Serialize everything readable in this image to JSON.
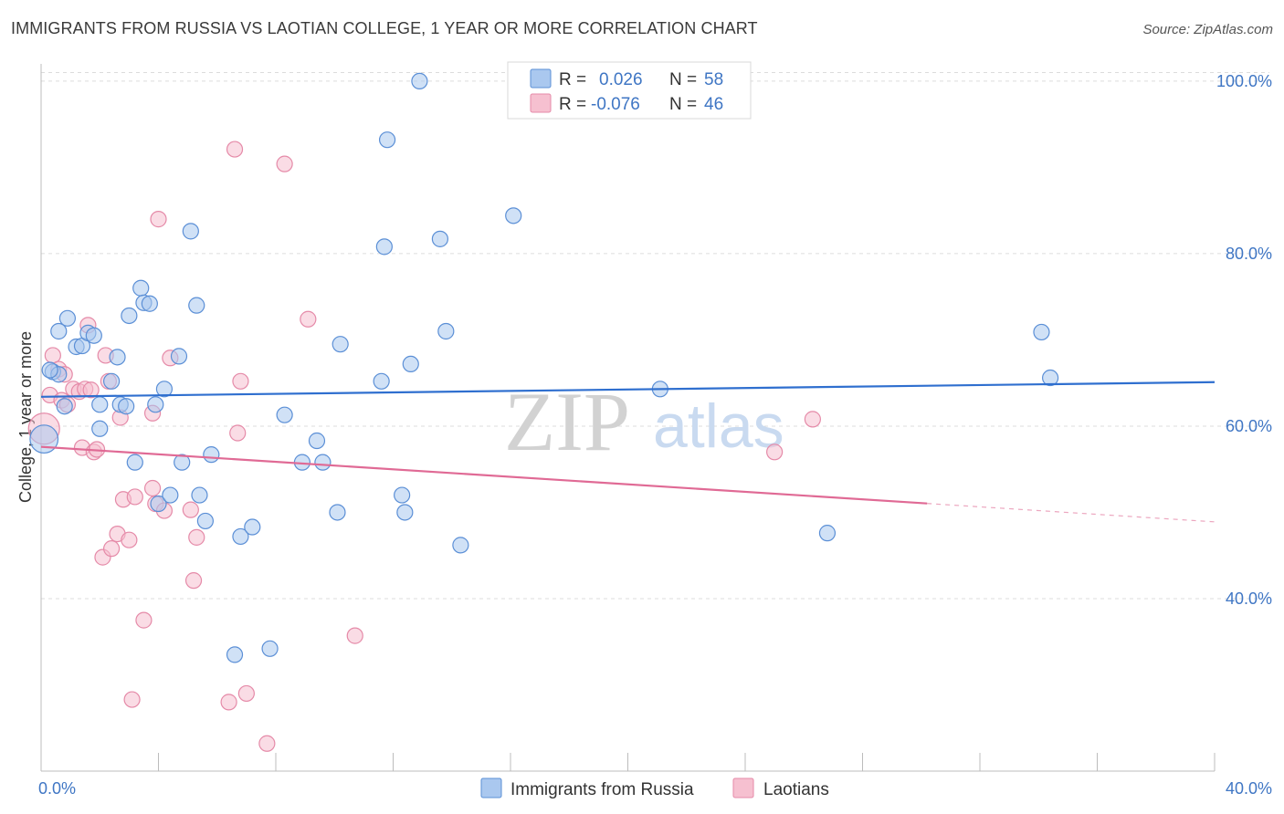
{
  "title": "IMMIGRANTS FROM RUSSIA VS LAOTIAN COLLEGE, 1 YEAR OR MORE CORRELATION CHART",
  "source": "Source: ZipAtlas.com",
  "watermark": {
    "zip": "ZIP",
    "atlas": "atlas"
  },
  "colors": {
    "blue_fill": "#aac8ef",
    "blue_stroke": "#5b8fd6",
    "blue_line": "#2f6fcf",
    "pink_fill": "#f6c0d0",
    "pink_stroke": "#e58aa8",
    "pink_line": "#e06a95",
    "tick_text": "#3f76c4",
    "grid": "#dcdcdc"
  },
  "legend_top": {
    "rows": [
      {
        "r_label": "R =",
        "r_value": "0.026",
        "n_label": "N =",
        "n_value": "58",
        "color": "blue"
      },
      {
        "r_label": "R =",
        "r_value": "-0.076",
        "n_label": "N =",
        "n_value": "46",
        "color": "pink"
      }
    ]
  },
  "legend_bottom": {
    "items": [
      {
        "label": "Immigrants from Russia",
        "color": "blue"
      },
      {
        "label": "Laotians",
        "color": "pink"
      }
    ]
  },
  "chart_data": {
    "type": "scatter",
    "xlabel": "",
    "ylabel": "College, 1 year or more",
    "xlim": [
      0,
      40
    ],
    "ylim": [
      20,
      102
    ],
    "x_tick_labels": [
      {
        "value": 0,
        "label": "0.0%"
      },
      {
        "value": 40,
        "label": "40.0%"
      }
    ],
    "y_tick_labels": [
      {
        "value": 40,
        "label": "40.0%"
      },
      {
        "value": 60,
        "label": "60.0%"
      },
      {
        "value": 80,
        "label": "80.0%"
      },
      {
        "value": 100,
        "label": "100.0%"
      }
    ],
    "y_gridlines": [
      40,
      60,
      80,
      100
    ],
    "x_minor_ticks": [
      4,
      8,
      12,
      16,
      20,
      24,
      28,
      32,
      36,
      40
    ],
    "series": [
      {
        "name": "Immigrants from Russia",
        "color": "blue",
        "trend": {
          "x": [
            0,
            40
          ],
          "y": [
            63.4,
            65.1
          ],
          "dashed_from": null
        },
        "points": [
          [
            0.1,
            58.5,
            1.8
          ],
          [
            0.4,
            66.3,
            1.0
          ],
          [
            0.6,
            66.0,
            1.0
          ],
          [
            0.8,
            62.3,
            1.0
          ],
          [
            0.6,
            71.0,
            1.0
          ],
          [
            0.9,
            72.5,
            1.0
          ],
          [
            1.2,
            69.2,
            1.0
          ],
          [
            1.4,
            69.3,
            1.0
          ],
          [
            1.6,
            70.8,
            1.0
          ],
          [
            1.8,
            70.5,
            1.0
          ],
          [
            2.0,
            62.5,
            1.0
          ],
          [
            2.0,
            59.7,
            1.0
          ],
          [
            2.4,
            65.2,
            1.0
          ],
          [
            2.6,
            68.0,
            1.0
          ],
          [
            2.7,
            62.5,
            1.0
          ],
          [
            2.9,
            62.3,
            1.0
          ],
          [
            3.0,
            72.8,
            1.0
          ],
          [
            3.2,
            55.8,
            1.0
          ],
          [
            3.4,
            76.0,
            1.0
          ],
          [
            3.5,
            74.3,
            1.0
          ],
          [
            3.7,
            74.2,
            1.0
          ],
          [
            3.9,
            62.5,
            1.0
          ],
          [
            4.2,
            64.3,
            1.0
          ],
          [
            4.0,
            51.0,
            1.0
          ],
          [
            4.4,
            52.0,
            1.0
          ],
          [
            4.7,
            68.1,
            1.0
          ],
          [
            4.8,
            55.8,
            1.0
          ],
          [
            5.1,
            82.6,
            1.0
          ],
          [
            5.3,
            74.0,
            1.0
          ],
          [
            5.4,
            52.0,
            1.0
          ],
          [
            5.6,
            49.0,
            1.0
          ],
          [
            5.8,
            56.7,
            1.0
          ],
          [
            6.6,
            33.5,
            1.0
          ],
          [
            6.8,
            47.2,
            1.0
          ],
          [
            7.2,
            48.3,
            1.0
          ],
          [
            7.8,
            34.2,
            1.0
          ],
          [
            8.3,
            61.3,
            1.0
          ],
          [
            8.9,
            55.8,
            1.0
          ],
          [
            9.4,
            58.3,
            1.0
          ],
          [
            9.6,
            55.8,
            1.0
          ],
          [
            10.1,
            50.0,
            1.0
          ],
          [
            10.2,
            69.5,
            1.0
          ],
          [
            11.6,
            65.2,
            1.0
          ],
          [
            11.7,
            80.8,
            1.0
          ],
          [
            11.8,
            93.2,
            1.0
          ],
          [
            12.3,
            52.0,
            1.0
          ],
          [
            12.4,
            50.0,
            1.0
          ],
          [
            12.6,
            67.2,
            1.0
          ],
          [
            12.9,
            100.0,
            1.0
          ],
          [
            13.6,
            81.7,
            1.0
          ],
          [
            13.8,
            71.0,
            1.0
          ],
          [
            14.3,
            46.2,
            1.0
          ],
          [
            16.1,
            84.4,
            1.0
          ],
          [
            21.1,
            64.3,
            1.0
          ],
          [
            26.8,
            47.6,
            1.0
          ],
          [
            34.1,
            70.9,
            1.0
          ],
          [
            34.4,
            65.6,
            1.0
          ],
          [
            0.3,
            66.5,
            1.0
          ]
        ]
      },
      {
        "name": "Laotians",
        "color": "pink",
        "trend": {
          "x": [
            0,
            40
          ],
          "y": [
            57.6,
            48.9
          ],
          "dashed_from": 30.2
        },
        "points": [
          [
            0.1,
            59.7,
            2.0
          ],
          [
            0.3,
            63.6,
            1.0
          ],
          [
            0.4,
            68.2,
            1.0
          ],
          [
            0.6,
            66.6,
            1.0
          ],
          [
            0.7,
            63.0,
            1.0
          ],
          [
            0.8,
            66.0,
            1.0
          ],
          [
            0.9,
            62.5,
            1.0
          ],
          [
            1.1,
            64.3,
            1.0
          ],
          [
            1.3,
            64.0,
            1.0
          ],
          [
            1.4,
            57.5,
            1.0
          ],
          [
            1.5,
            64.3,
            1.0
          ],
          [
            1.6,
            71.7,
            1.0
          ],
          [
            1.7,
            64.2,
            1.0
          ],
          [
            1.8,
            57.0,
            1.0
          ],
          [
            1.9,
            57.3,
            1.0
          ],
          [
            2.1,
            44.8,
            1.0
          ],
          [
            2.2,
            68.2,
            1.0
          ],
          [
            2.3,
            65.2,
            1.0
          ],
          [
            2.4,
            45.8,
            1.0
          ],
          [
            2.6,
            47.5,
            1.0
          ],
          [
            2.7,
            61.0,
            1.0
          ],
          [
            2.8,
            51.5,
            1.0
          ],
          [
            3.0,
            46.8,
            1.0
          ],
          [
            3.1,
            28.3,
            1.0
          ],
          [
            3.2,
            51.8,
            1.0
          ],
          [
            3.5,
            37.5,
            1.0
          ],
          [
            3.8,
            52.8,
            1.0
          ],
          [
            3.8,
            61.5,
            1.0
          ],
          [
            3.9,
            51.0,
            1.0
          ],
          [
            4.0,
            84.0,
            1.0
          ],
          [
            4.2,
            50.2,
            1.0
          ],
          [
            4.4,
            67.9,
            1.0
          ],
          [
            5.1,
            50.3,
            1.0
          ],
          [
            5.2,
            42.1,
            1.0
          ],
          [
            5.3,
            47.1,
            1.0
          ],
          [
            6.4,
            28.0,
            1.0
          ],
          [
            6.6,
            92.1,
            1.0
          ],
          [
            6.8,
            65.2,
            1.0
          ],
          [
            6.7,
            59.2,
            1.0
          ],
          [
            7.0,
            29.0,
            1.0
          ],
          [
            7.7,
            23.2,
            1.0
          ],
          [
            8.3,
            90.4,
            1.0
          ],
          [
            9.1,
            72.4,
            1.0
          ],
          [
            10.7,
            35.7,
            1.0
          ],
          [
            25.0,
            57.0,
            1.0
          ],
          [
            26.3,
            60.8,
            1.0
          ]
        ]
      }
    ]
  }
}
